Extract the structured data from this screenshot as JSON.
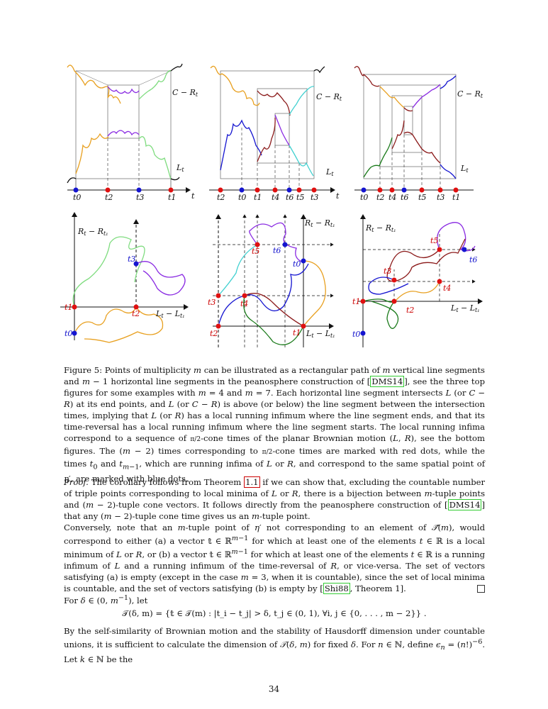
{
  "figure": {
    "top_panels": [
      {
        "upper_label": "C − R",
        "upper_sub": "t",
        "lower_label": "L",
        "lower_sub": "t",
        "axis_label": "t",
        "times": [
          "t0",
          "t2",
          "t3",
          "t1"
        ]
      },
      {
        "upper_label": "C − R",
        "upper_sub": "t",
        "lower_label": "L",
        "lower_sub": "t",
        "axis_label": "t",
        "times": [
          "t2",
          "t0",
          "t1",
          "t4",
          "t6",
          "t5",
          "t3"
        ]
      },
      {
        "upper_label": "C − R",
        "upper_sub": "t",
        "lower_label": "L",
        "lower_sub": "t",
        "axis_label": "",
        "times": [
          "t0",
          "t2",
          "t4",
          "t6",
          "t5",
          "t3",
          "t1"
        ]
      }
    ],
    "bottom_panels": [
      {
        "y_label": "R",
        "y_label_rest": " − R",
        "x_label": "L",
        "x_label_rest": " − L",
        "points": [
          "t3",
          "t1",
          "t2",
          "t0"
        ]
      },
      {
        "y_label": "R",
        "y_label_rest": " − R",
        "x_label": "L",
        "x_label_rest": " − L",
        "points": [
          "t5",
          "t6",
          "t0",
          "t3",
          "t4",
          "t2",
          "t1"
        ]
      },
      {
        "y_label": "R",
        "y_label_rest": " − R",
        "x_label": "L",
        "x_label_rest": " − L",
        "points": [
          "t5",
          "t6",
          "t3",
          "t4",
          "t1",
          "t2",
          "t0"
        ]
      }
    ]
  },
  "caption": {
    "lead": "Figure 5: Points of multiplicity",
    "s1": "can be illustrated as a rectangular path of",
    "s2": "vertical line segments and",
    "s3": "horizontal line segments in the peanosphere construction of",
    "cite1": "DMS14",
    "s4": ", see the three top figures for some examples with",
    "s5": "and",
    "s6": ". Each horizontal line segment intersects",
    "s7": "(or",
    "s8": ") at its end points, and",
    "s9": "(or",
    "s10": ") is above (or below) the line segment between the intersection times, implying that",
    "s11": "(or",
    "s12": ") has a local running infimum where the line segment ends, and that its time-reversal has a local running infimum where the line segment starts. The local running infima correspond to a sequence of",
    "s13": "-cone times of the planar Brownian motion",
    "s14": ", see the bottom figures. The",
    "s15": "times corresponding to",
    "s16": "-cone times are marked with red dots, while the times",
    "s17": "and",
    "s18": ", which are running infima of",
    "s19": "or",
    "s20": ", and correspond to the same spatial point of",
    "s21": ", are marked with blue dots."
  },
  "proof": {
    "label": "Proof.",
    "p1": "The corollary follows from Theorem",
    "ref": "1.1",
    "p2": "if we can show that, excluding the countable number of triple points corresponding to local minima of",
    "p3": "or",
    "p4": ", there is a bijection between",
    "p5": "-tuple points and",
    "p6": "-tuple cone vectors. It follows directly from the peanosphere construction of",
    "cite": "DMS14",
    "p7": "that any",
    "p8": "-tuple cone time gives us an",
    "p9": "-tuple point."
  },
  "converse": {
    "c1": "Conversely, note that an",
    "c2": "-tuple point of",
    "c3": "not corresponding to an element of",
    "c4": ", would correspond to either (a) a vector",
    "c5": "for which at least one of the elements",
    "c6": "is a local minimum of",
    "c7": "or",
    "c8": ", or (b) a vector",
    "c9": "for which at least one of the elements",
    "c10": "is a running infimum of",
    "c11": "and a running infimum of the time-reversal of",
    "c12": ", or vice-versa. The set of vectors satisfying (a) is empty (except in the case",
    "c13": ", when it is countable), since the set of local minima is countable, and the set of vectors satisfying (b) is empty by",
    "cite": "Shi88",
    "c14": ", Theorem 1]."
  },
  "fordelta": {
    "f1": "For",
    "f2": ", let"
  },
  "display": "𝒯(δ, m) = {𝕥 ∈ 𝒯(m) : |t_i − t_j| > δ, t_j ∈ (0, 1), ∀i, j ∈ {0, . . . , m − 2}} .",
  "last": {
    "l1": "By the self-similarity of Brownian motion and the stability of Hausdorff dimension under countable unions, it is sufficient to calculate the dimension of",
    "l2": "for fixed",
    "l3": ". For",
    "l4": ", define",
    "l5": ". Let",
    "l6": "be the"
  },
  "page_number": "34"
}
